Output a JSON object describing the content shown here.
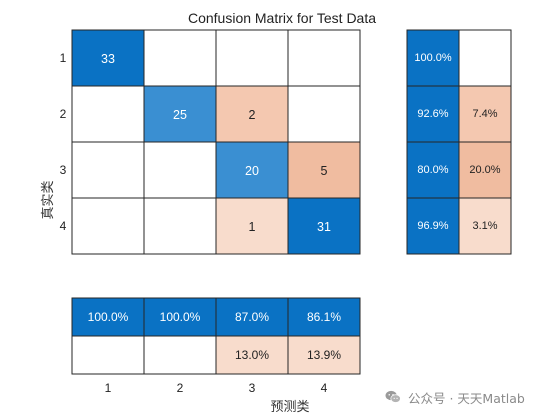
{
  "chart_data": {
    "type": "heatmap",
    "title": "Confusion Matrix for Test Data",
    "xlabel": "预测类",
    "ylabel": "真实类",
    "classes": [
      "1",
      "2",
      "3",
      "4"
    ],
    "matrix": [
      [
        33,
        0,
        0,
        0
      ],
      [
        0,
        25,
        2,
        0
      ],
      [
        0,
        0,
        20,
        5
      ],
      [
        0,
        0,
        1,
        31
      ]
    ],
    "row_summary": {
      "correct": [
        "100.0%",
        "92.6%",
        "80.0%",
        "96.9%"
      ],
      "incorrect": [
        "",
        "7.4%",
        "20.0%",
        "3.1%"
      ]
    },
    "column_summary": {
      "correct": [
        "100.0%",
        "100.0%",
        "87.0%",
        "86.1%"
      ],
      "incorrect": [
        "",
        "",
        "13.0%",
        "13.9%"
      ]
    },
    "colors": {
      "diag_strong": "#0a72c4",
      "diag_mid": "#3a8fd2",
      "off_light": "#f8dccc",
      "off_mid": "#f4c8b0",
      "off_strong": "#f0bca0"
    }
  },
  "watermark": {
    "text": "公众号 · 天天Matlab",
    "icon": "wechat-icon"
  }
}
